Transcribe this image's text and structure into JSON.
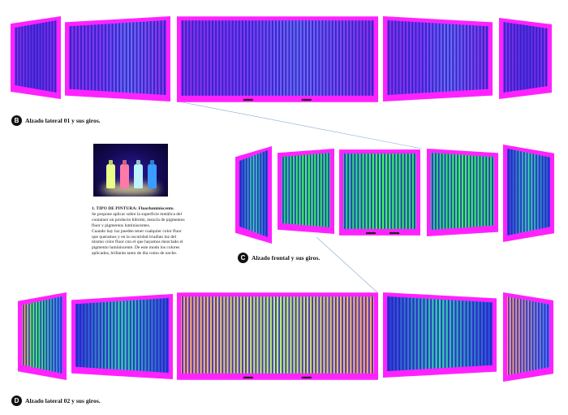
{
  "sections": {
    "lateral_01": {
      "marker": "B",
      "caption": "Alzado lateral 01 y sus giros."
    },
    "frontal": {
      "marker": "C",
      "caption": "Alzado frontal y sus giros."
    },
    "lateral_02": {
      "marker": "D",
      "caption": "Alzado lateral 02 y sus giros."
    }
  },
  "paint_note": {
    "title": "1. TIPO DE PINTURA: Fluorluminiscente.",
    "lines": [
      "Se propone aplicar sobre la superficie metálica del",
      "container un producto híbrido, mezcla de pigmentos",
      "fluor y pigmentos luminiscentes.",
      "Cuando hay luz pueden tener cualquier color fluor",
      "que queramos y en la oscuridad irradian luz del",
      "mismo color fluor con el que hayamos mezclado el",
      "pigmento luminiscente. De este modo los colores",
      "aplicados, brillarán tanto de día como de noche."
    ]
  },
  "colors": {
    "frame": "#ff22ff",
    "rib_dark": "#2a1ec8",
    "rib_violet": "#8a2fe6",
    "glow_green": "#3cff55",
    "photo_bg": "#140a55"
  }
}
